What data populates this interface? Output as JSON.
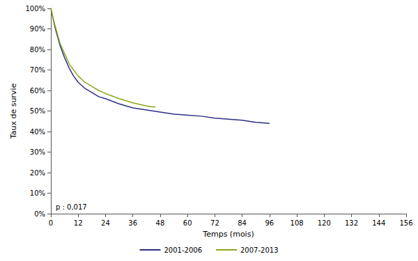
{
  "chart_data": {
    "type": "line",
    "x_label": "Temps (mois)",
    "y_label": "Taux de survie",
    "annotation": "p : 0,017",
    "xlim": [
      0,
      156
    ],
    "xticks": [
      0,
      12,
      24,
      36,
      48,
      60,
      72,
      84,
      96,
      108,
      120,
      132,
      144,
      156
    ],
    "ylim": [
      0,
      100
    ],
    "yticks": [
      {
        "value": 0,
        "label": "0%"
      },
      {
        "value": 10,
        "label": "10%"
      },
      {
        "value": 20,
        "label": "20%"
      },
      {
        "value": 30,
        "label": "30%"
      },
      {
        "value": 40,
        "label": "40%"
      },
      {
        "value": 50,
        "label": "50%"
      },
      {
        "value": 60,
        "label": "60%"
      },
      {
        "value": 70,
        "label": "70%"
      },
      {
        "value": 80,
        "label": "80%"
      },
      {
        "value": 90,
        "label": "90%"
      },
      {
        "value": 100,
        "label": "100%"
      }
    ],
    "grid": false,
    "legend": "bottom",
    "series": [
      {
        "name": "2001-2006",
        "color": "#2b2f86",
        "x": [
          0,
          1,
          2,
          3,
          4,
          6,
          8,
          10,
          12,
          15,
          18,
          21,
          24,
          30,
          36,
          42,
          48,
          54,
          60,
          66,
          72,
          78,
          84,
          90,
          96
        ],
        "values": [
          100,
          95,
          90,
          86,
          82,
          76,
          71,
          67,
          64,
          61,
          59,
          57,
          56,
          53.5,
          51.5,
          50.5,
          49.5,
          48.5,
          48,
          47.5,
          46.5,
          46,
          45.5,
          44.5,
          44
        ]
      },
      {
        "name": "2007-2013",
        "color": "#8aa61d",
        "x": [
          0,
          1,
          2,
          3,
          4,
          6,
          8,
          10,
          12,
          15,
          18,
          21,
          24,
          30,
          36,
          40,
          44,
          46
        ],
        "values": [
          100,
          95,
          91,
          87,
          83,
          78,
          73,
          70,
          67,
          64,
          62,
          60,
          58.5,
          56,
          54,
          53,
          52,
          52
        ]
      }
    ]
  }
}
